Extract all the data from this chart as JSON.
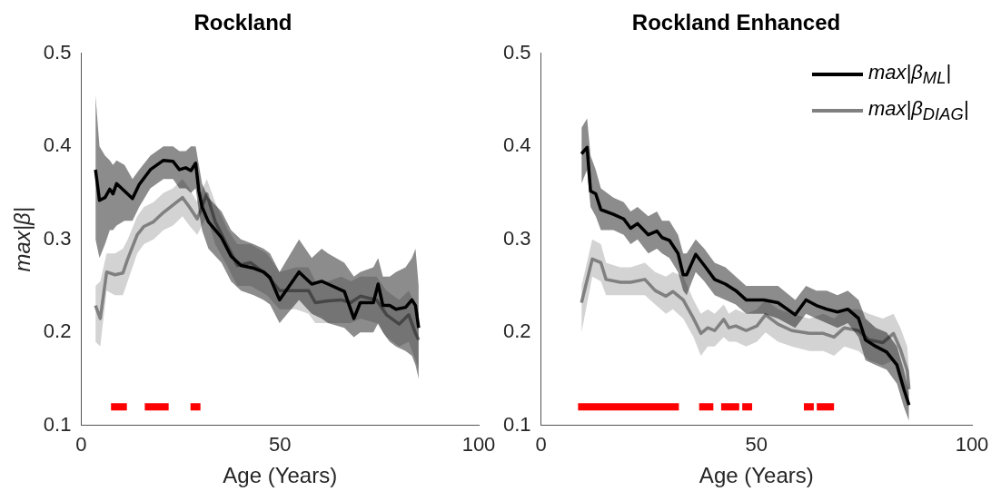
{
  "chart_data": [
    {
      "type": "line",
      "title": "Rockland",
      "xlabel": "Age (Years)",
      "ylabel": "max|β|",
      "xlim": [
        0,
        100
      ],
      "xticks": [
        0,
        50,
        100
      ],
      "ylim": [
        0.1,
        0.5
      ],
      "yticks": [
        0.1,
        0.2,
        0.3,
        0.4,
        0.5
      ],
      "grid": false,
      "legend": false,
      "series": [
        {
          "color": "#000000",
          "x": [
            3.6,
            4.6,
            6,
            7.2,
            8,
            8.9,
            10.9,
            12.9,
            14.6,
            17.4,
            20.7,
            23.1,
            24.7,
            26.3,
            27.6,
            28.8,
            29.6,
            30.4,
            32,
            35.3,
            37.7,
            40.2,
            43.4,
            45.9,
            47.5,
            49.9,
            54.8,
            58,
            60.5,
            62.1,
            66.2,
            68.6,
            70.2,
            73.5,
            74.7,
            75.9,
            77.6,
            79.2,
            81.6,
            83.2,
            84.1,
            84.9
          ],
          "values": [
            0.375,
            0.342,
            0.345,
            0.354,
            0.349,
            0.36,
            0.352,
            0.344,
            0.359,
            0.375,
            0.385,
            0.384,
            0.375,
            0.377,
            0.374,
            0.382,
            0.352,
            0.335,
            0.319,
            0.302,
            0.282,
            0.272,
            0.269,
            0.265,
            0.259,
            0.235,
            0.265,
            0.252,
            0.255,
            0.252,
            0.244,
            0.215,
            0.232,
            0.232,
            0.252,
            0.229,
            0.229,
            0.225,
            0.227,
            0.235,
            0.229,
            0.205
          ],
          "lower": [
            0.3,
            0.28,
            0.295,
            0.31,
            0.31,
            0.315,
            0.32,
            0.32,
            0.335,
            0.355,
            0.365,
            0.365,
            0.355,
            0.355,
            0.35,
            0.355,
            0.33,
            0.31,
            0.29,
            0.275,
            0.255,
            0.245,
            0.24,
            0.235,
            0.23,
            0.21,
            0.235,
            0.22,
            0.215,
            0.21,
            0.205,
            0.195,
            0.2,
            0.2,
            0.21,
            0.2,
            0.19,
            0.185,
            0.18,
            0.175,
            0.165,
            0.15
          ],
          "upper": [
            0.455,
            0.4,
            0.39,
            0.385,
            0.38,
            0.385,
            0.38,
            0.365,
            0.375,
            0.39,
            0.4,
            0.4,
            0.395,
            0.395,
            0.4,
            0.4,
            0.38,
            0.36,
            0.345,
            0.33,
            0.31,
            0.3,
            0.295,
            0.29,
            0.285,
            0.265,
            0.3,
            0.28,
            0.29,
            0.285,
            0.275,
            0.26,
            0.265,
            0.27,
            0.28,
            0.26,
            0.26,
            0.265,
            0.27,
            0.28,
            0.29,
            0.25
          ]
        },
        {
          "color": "#808080",
          "x": [
            3.6,
            4.8,
            6.4,
            8.5,
            10.5,
            11.7,
            14.1,
            15.8,
            18.2,
            20.7,
            23.1,
            25.5,
            27.2,
            29.2,
            31.6,
            33.7,
            36.9,
            39.3,
            42.6,
            46.7,
            49.9,
            54,
            57.2,
            58.9,
            62.1,
            65.4,
            67.8,
            70.2,
            74.3,
            76.8,
            80,
            82.4,
            84.1,
            84.9
          ],
          "values": [
            0.229,
            0.215,
            0.265,
            0.262,
            0.264,
            0.279,
            0.305,
            0.314,
            0.319,
            0.329,
            0.337,
            0.345,
            0.335,
            0.322,
            0.349,
            0.319,
            0.292,
            0.272,
            0.275,
            0.262,
            0.245,
            0.245,
            0.245,
            0.232,
            0.234,
            0.235,
            0.232,
            0.239,
            0.235,
            0.219,
            0.209,
            0.219,
            0.199,
            0.192
          ],
          "lower": [
            0.19,
            0.185,
            0.245,
            0.24,
            0.24,
            0.255,
            0.285,
            0.295,
            0.3,
            0.31,
            0.315,
            0.325,
            0.315,
            0.305,
            0.325,
            0.295,
            0.27,
            0.25,
            0.25,
            0.24,
            0.225,
            0.225,
            0.22,
            0.21,
            0.21,
            0.21,
            0.21,
            0.215,
            0.21,
            0.195,
            0.185,
            0.19,
            0.17,
            0.16
          ],
          "upper": [
            0.25,
            0.255,
            0.285,
            0.285,
            0.29,
            0.3,
            0.325,
            0.335,
            0.34,
            0.35,
            0.355,
            0.365,
            0.355,
            0.34,
            0.365,
            0.34,
            0.31,
            0.295,
            0.295,
            0.285,
            0.265,
            0.27,
            0.27,
            0.255,
            0.255,
            0.26,
            0.255,
            0.26,
            0.26,
            0.245,
            0.235,
            0.245,
            0.23,
            0.22
          ]
        },
        {
          "color": "#ff0000",
          "x": [
            7.5,
            11.5,
            13,
            16,
            22,
            25,
            27.5,
            30
          ],
          "values": [
            0.12,
            0.12,
            null,
            0.12,
            0.12,
            null,
            0.12,
            0.12
          ]
        }
      ]
    },
    {
      "type": "line",
      "title": "Rockland Enhanced",
      "xlabel": "Age (Years)",
      "xlim": [
        0,
        100
      ],
      "xticks": [
        0,
        50,
        100
      ],
      "ylim": [
        0.1,
        0.5
      ],
      "yticks": [
        0.1,
        0.2,
        0.3,
        0.4,
        0.5
      ],
      "grid": false,
      "legend": "top right",
      "series": [
        {
          "name": "max|β$_{ML}$|",
          "color": "#000000",
          "x": [
            9.4,
            10.7,
            11.5,
            12.7,
            13.9,
            16.8,
            19.2,
            20.8,
            22.4,
            24.9,
            26.9,
            28.1,
            29.8,
            31.8,
            33,
            33.8,
            35.9,
            37.9,
            40.3,
            42.8,
            45.2,
            47.6,
            51.7,
            55,
            59,
            61.5,
            63.9,
            66.3,
            68.8,
            71.2,
            73.7,
            75.3,
            77.7,
            80.2,
            82.6,
            84.2,
            85.4
          ],
          "values": [
            0.392,
            0.399,
            0.352,
            0.349,
            0.332,
            0.327,
            0.322,
            0.312,
            0.317,
            0.305,
            0.309,
            0.302,
            0.299,
            0.285,
            0.262,
            0.262,
            0.284,
            0.272,
            0.257,
            0.252,
            0.245,
            0.235,
            0.235,
            0.232,
            0.219,
            0.235,
            0.229,
            0.225,
            0.222,
            0.225,
            0.215,
            0.192,
            0.185,
            0.179,
            0.165,
            0.139,
            0.122
          ],
          "lower": [
            0.36,
            0.375,
            0.335,
            0.325,
            0.31,
            0.31,
            0.305,
            0.295,
            0.3,
            0.285,
            0.29,
            0.285,
            0.28,
            0.265,
            0.245,
            0.24,
            0.265,
            0.255,
            0.24,
            0.235,
            0.23,
            0.22,
            0.22,
            0.215,
            0.205,
            0.22,
            0.215,
            0.21,
            0.205,
            0.21,
            0.195,
            0.17,
            0.165,
            0.16,
            0.145,
            0.12,
            0.105
          ],
          "upper": [
            0.42,
            0.43,
            0.39,
            0.375,
            0.355,
            0.345,
            0.34,
            0.33,
            0.335,
            0.325,
            0.33,
            0.32,
            0.32,
            0.305,
            0.285,
            0.285,
            0.3,
            0.29,
            0.275,
            0.27,
            0.26,
            0.25,
            0.25,
            0.25,
            0.235,
            0.25,
            0.245,
            0.245,
            0.24,
            0.245,
            0.235,
            0.215,
            0.205,
            0.2,
            0.185,
            0.16,
            0.135
          ]
        },
        {
          "name": "max|β$_{DIAG}$|",
          "color": "#808080",
          "x": [
            9.4,
            11.9,
            13.9,
            15.1,
            18.4,
            20.8,
            24.1,
            26.5,
            29,
            30.6,
            33,
            35.4,
            37.1,
            38.7,
            40.3,
            42.4,
            43.6,
            45.2,
            47.6,
            50.1,
            52.1,
            55,
            58.2,
            62.3,
            65.5,
            68,
            70.4,
            73.7,
            76.1,
            79.3,
            81.8,
            83.4,
            85,
            85.4
          ],
          "values": [
            0.232,
            0.279,
            0.275,
            0.257,
            0.254,
            0.254,
            0.257,
            0.245,
            0.239,
            0.244,
            0.235,
            0.215,
            0.199,
            0.205,
            0.202,
            0.214,
            0.205,
            0.207,
            0.202,
            0.207,
            0.219,
            0.209,
            0.202,
            0.199,
            0.199,
            0.195,
            0.205,
            0.202,
            0.192,
            0.189,
            0.199,
            0.182,
            0.159,
            0.139
          ],
          "lower": [
            0.2,
            0.26,
            0.255,
            0.24,
            0.24,
            0.24,
            0.24,
            0.23,
            0.22,
            0.225,
            0.215,
            0.195,
            0.175,
            0.185,
            0.185,
            0.195,
            0.19,
            0.19,
            0.185,
            0.19,
            0.2,
            0.19,
            0.185,
            0.18,
            0.18,
            0.175,
            0.185,
            0.18,
            0.17,
            0.165,
            0.17,
            0.155,
            0.13,
            0.12
          ],
          "upper": [
            0.25,
            0.3,
            0.295,
            0.275,
            0.27,
            0.27,
            0.275,
            0.265,
            0.26,
            0.265,
            0.26,
            0.235,
            0.22,
            0.225,
            0.22,
            0.23,
            0.22,
            0.225,
            0.22,
            0.225,
            0.235,
            0.225,
            0.22,
            0.215,
            0.22,
            0.215,
            0.225,
            0.225,
            0.22,
            0.215,
            0.22,
            0.205,
            0.185,
            0.16
          ]
        },
        {
          "color": "#ff0000",
          "x": [
            8.6,
            32,
            34,
            36.7,
            40,
            41,
            41.8,
            46,
            46.3,
            46.7,
            49,
            55,
            61,
            63.3,
            63.6,
            64,
            68
          ],
          "values": [
            0.12,
            0.12,
            null,
            0.12,
            0.12,
            null,
            0.12,
            0.12,
            null,
            0.12,
            0.12,
            null,
            0.12,
            0.12,
            null,
            0.12,
            0.12
          ]
        }
      ]
    }
  ]
}
